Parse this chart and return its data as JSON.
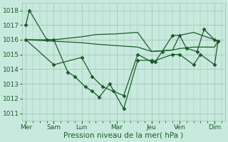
{
  "bg_color": "#c8eade",
  "grid_color": "#9dbfb0",
  "line_color": "#1a5c28",
  "marker_color": "#1a5c28",
  "xlabel": "Pression niveau de la mer( hPa )",
  "ylim": [
    1010.5,
    1018.5
  ],
  "yticks": [
    1011,
    1012,
    1013,
    1014,
    1015,
    1016,
    1017,
    1018
  ],
  "day_labels": [
    "Mer",
    "Sam",
    "Lun",
    "Mar",
    "Jeu",
    "Ven",
    "Dim"
  ],
  "day_x": [
    0,
    4,
    8,
    13,
    18,
    22,
    27
  ],
  "xlim": [
    -0.5,
    28.5
  ],
  "xminor_ticks": 28,
  "series1_x": [
    0,
    0.5,
    3,
    4,
    6,
    7,
    8.5,
    9.5,
    10.5,
    12,
    14,
    16,
    18,
    18.5,
    19.5,
    21,
    22,
    23,
    24.5,
    25.5,
    27,
    27.5
  ],
  "series1_y": [
    1017.0,
    1018.0,
    1016.0,
    1016.0,
    1013.8,
    1013.5,
    1012.8,
    1012.5,
    1012.1,
    1013.0,
    1011.3,
    1014.6,
    1014.6,
    1014.5,
    1015.2,
    1016.3,
    1016.3,
    1015.4,
    1015.2,
    1016.7,
    1016.0,
    1015.9
  ],
  "series2_x": [
    0,
    4,
    8,
    10,
    13,
    16,
    18,
    21,
    22,
    24,
    27,
    27.5
  ],
  "series2_y": [
    1016.0,
    1016.0,
    1016.2,
    1016.35,
    1016.4,
    1016.5,
    1015.2,
    1015.3,
    1016.3,
    1016.5,
    1016.0,
    1015.9
  ],
  "series3_x": [
    0,
    4,
    8,
    10,
    13,
    16,
    18,
    21,
    22,
    24,
    27,
    27.5
  ],
  "series3_y": [
    1016.0,
    1015.9,
    1015.8,
    1015.7,
    1015.6,
    1015.5,
    1015.2,
    1015.3,
    1015.4,
    1015.5,
    1015.5,
    1015.9
  ],
  "series4_x": [
    0,
    4,
    8,
    9.5,
    11,
    12.5,
    14,
    16,
    18,
    21,
    22,
    24,
    25,
    27,
    27.5
  ],
  "series4_y": [
    1016.0,
    1014.3,
    1014.8,
    1013.5,
    1012.8,
    1012.5,
    1012.2,
    1015.0,
    1014.5,
    1015.0,
    1015.0,
    1014.3,
    1015.0,
    1014.3,
    1015.9
  ],
  "tick_label_fontsize": 6.5,
  "axis_label_fontsize": 7.5
}
